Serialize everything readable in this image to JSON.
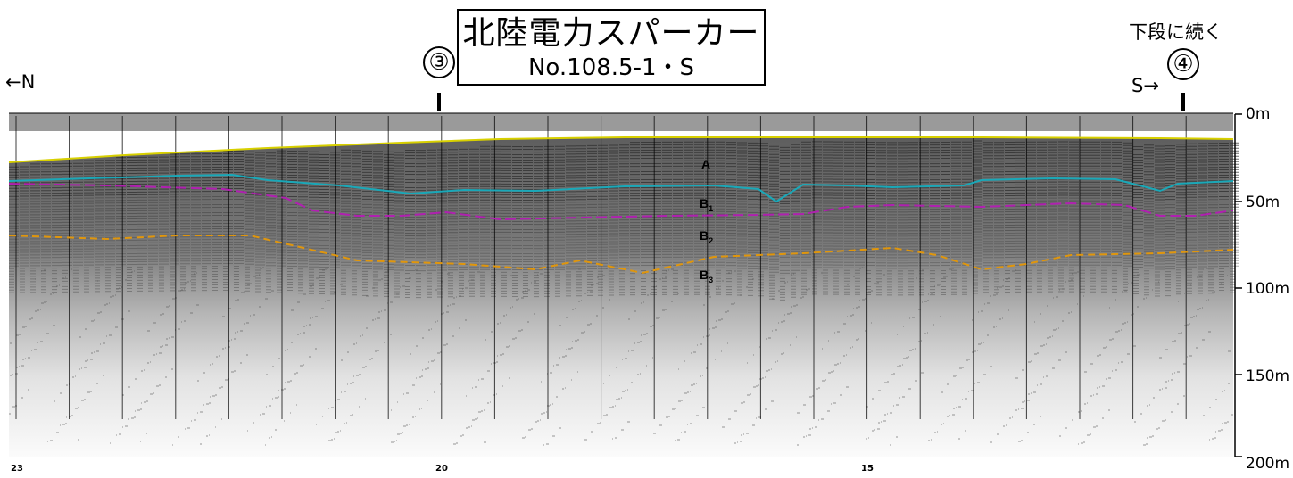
{
  "title": "北陸電力スパーカー",
  "line_id": "No.108.5-1・S",
  "continues_label": "下段に続く",
  "left_direction": "←N",
  "right_direction": "S→",
  "marker_left": "③",
  "marker_right": "④",
  "depth_scale": {
    "max_m": 200,
    "labels": [
      "0m",
      "50m",
      "100m",
      "150m",
      "200m"
    ]
  },
  "distance_labels": [
    "23",
    "20",
    "15"
  ],
  "units": [
    {
      "name": "A",
      "sub": ""
    },
    {
      "name": "B",
      "sub": "1"
    },
    {
      "name": "B",
      "sub": "2"
    },
    {
      "name": "B",
      "sub": "3"
    }
  ],
  "horizon_colors": {
    "seafloor": "#d8d000",
    "a_base": "#1aa8b8",
    "b1_base": "#b020b0",
    "b2_base": "#e0960c"
  }
}
